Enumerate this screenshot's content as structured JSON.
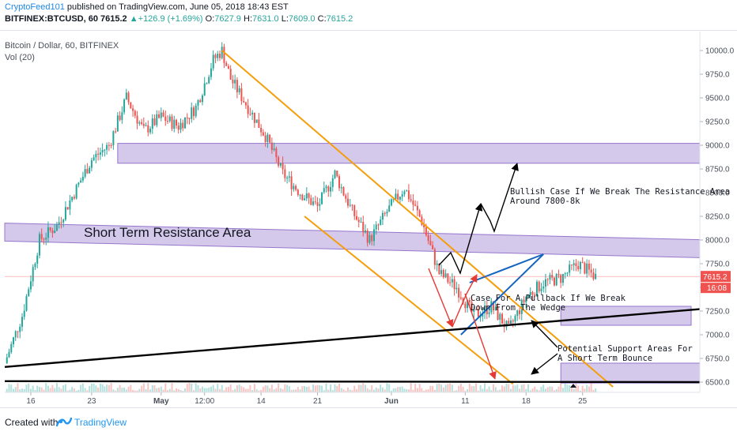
{
  "header": {
    "author": "CryptoFeed101",
    "published": " published on TradingView.com, June 05, 2018 18:43 EST",
    "symbol_line": "BITFINEX:BTCUSD, 60",
    "last": "7615.2",
    "change": "+126.9 (+1.69%)",
    "o_label": "O:",
    "o": "7627.9",
    "h_label": "H:",
    "h": "7631.0",
    "l_label": "L:",
    "l": "7609.0",
    "c_label": "C:",
    "c": "7615.2"
  },
  "legend": {
    "title": "Bitcoin / Dollar, 60, BITFINEX",
    "volume": "Vol (20)"
  },
  "chart_data": {
    "type": "candlestick",
    "symbol": "BITFINEX:BTCUSD",
    "interval": "60",
    "ylim": [
      6450,
      10100
    ],
    "y_ticks": [
      "10000.0",
      "9750.0",
      "9500.0",
      "9250.0",
      "9000.0",
      "8750.0",
      "8500.0",
      "8250.0",
      "8000.0",
      "7750.0",
      "7500.0",
      "7250.0",
      "7000.0",
      "6750.0",
      "6500.0"
    ],
    "x_ticks": [
      "16",
      "23",
      "May",
      "12:00",
      "14",
      "21",
      "Jun",
      "11",
      "18",
      "25"
    ],
    "last_price_label": "7615.2",
    "countdown_label": "16:08",
    "price_path": [
      {
        "day": 0,
        "price": 6700
      },
      {
        "day": 2,
        "price": 7200
      },
      {
        "day": 4,
        "price": 8000
      },
      {
        "day": 6,
        "price": 8150
      },
      {
        "day": 8,
        "price": 8500
      },
      {
        "day": 10,
        "price": 8850
      },
      {
        "day": 12,
        "price": 9000
      },
      {
        "day": 14,
        "price": 9500
      },
      {
        "day": 16,
        "price": 9150
      },
      {
        "day": 18,
        "price": 9300
      },
      {
        "day": 20,
        "price": 9200
      },
      {
        "day": 22,
        "price": 9400
      },
      {
        "day": 24,
        "price": 9900
      },
      {
        "day": 25,
        "price": 10000
      },
      {
        "day": 26,
        "price": 9700
      },
      {
        "day": 28,
        "price": 9400
      },
      {
        "day": 30,
        "price": 9100
      },
      {
        "day": 32,
        "price": 8700
      },
      {
        "day": 34,
        "price": 8500
      },
      {
        "day": 36,
        "price": 8350
      },
      {
        "day": 38,
        "price": 8700
      },
      {
        "day": 40,
        "price": 8300
      },
      {
        "day": 42,
        "price": 8000
      },
      {
        "day": 44,
        "price": 8300
      },
      {
        "day": 46,
        "price": 8550
      },
      {
        "day": 48,
        "price": 8200
      },
      {
        "day": 50,
        "price": 7650
      },
      {
        "day": 52,
        "price": 7500
      },
      {
        "day": 54,
        "price": 7200
      },
      {
        "day": 56,
        "price": 7300
      },
      {
        "day": 58,
        "price": 7050
      },
      {
        "day": 60,
        "price": 7400
      },
      {
        "day": 62,
        "price": 7550
      },
      {
        "day": 64,
        "price": 7600
      },
      {
        "day": 66,
        "price": 7750
      },
      {
        "day": 68,
        "price": 7615
      }
    ],
    "zones": [
      {
        "x": [
          13,
          80
        ],
        "y": [
          8810,
          9020
        ]
      },
      {
        "x": [
          0,
          80
        ],
        "y": [
          7880,
          8070
        ],
        "slope": true
      },
      {
        "x": [
          64,
          79
        ],
        "y": [
          7100,
          7300
        ]
      },
      {
        "x": [
          64,
          80
        ],
        "y": [
          6490,
          6700
        ]
      }
    ],
    "annotations": [
      "Short Term Resistance Area",
      "Bullish Case If We Break The Resistance Area",
      "Around 7800-8k",
      "Case For A Pullback If We Break",
      "Down From The Wedge",
      "Potential Support Areas For",
      "A Short Term Bounce"
    ]
  },
  "footer": {
    "created_with": "Created with",
    "brand": "TradingView"
  },
  "colors": {
    "bull": "#26a69a",
    "bear": "#ef5350",
    "zone": "#b39ddb",
    "channel": "#f59e0b",
    "wedge": "#1565c0",
    "bullish_arrow": "#000000",
    "bearish_arrow": "#e53935",
    "axis_text": "#4a4f5a",
    "link": "#1e88e5"
  }
}
